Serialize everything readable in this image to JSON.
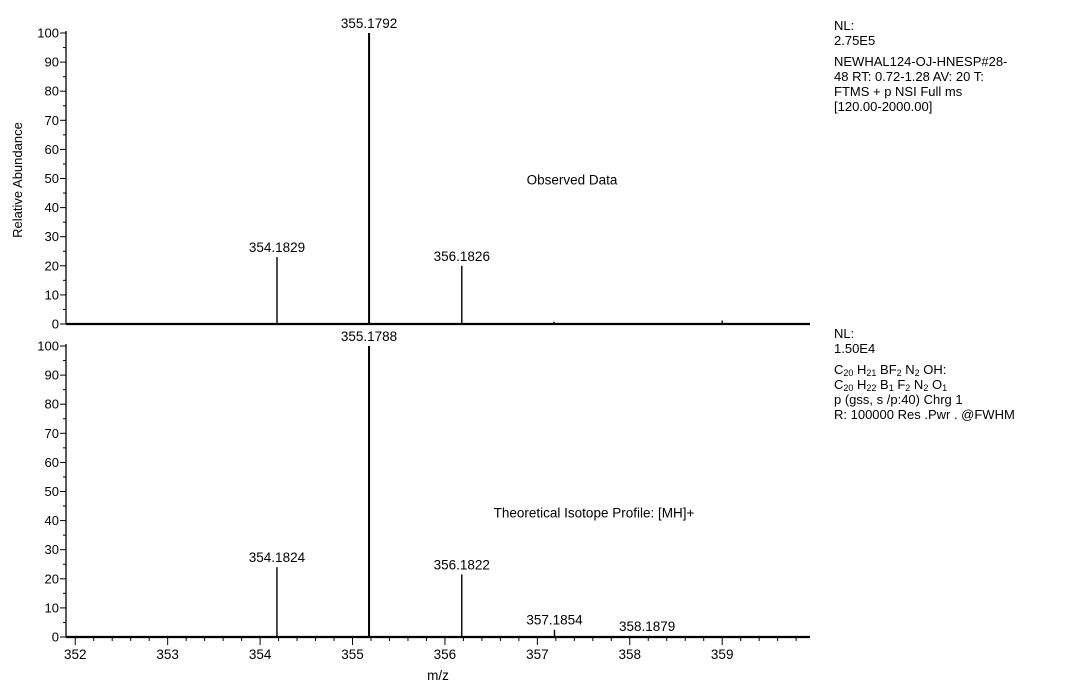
{
  "chart_data": [
    {
      "type": "bar",
      "panel": "observed",
      "title": "Observed Data",
      "ylabel": "Relative Abundance",
      "xlabel": "",
      "xlim": [
        351.9,
        359.95
      ],
      "ylim": [
        0,
        100
      ],
      "yticks": [
        0,
        10,
        20,
        30,
        40,
        50,
        60,
        70,
        80,
        90,
        100
      ],
      "peaks": [
        {
          "x": 354.1829,
          "y": 23,
          "label": "354.1829"
        },
        {
          "x": 355.1792,
          "y": 100,
          "label": "355.1792"
        },
        {
          "x": 356.1826,
          "y": 20,
          "label": "356.1826"
        },
        {
          "x": 357.18,
          "y": 0.8,
          "label": ""
        },
        {
          "x": 359.0,
          "y": 1.2,
          "label": ""
        }
      ],
      "info": {
        "nl_label": "NL:",
        "nl_value": "2.75E5",
        "lines": [
          "NEWHAL124-OJ-HNESP#28-",
          "48  RT: 0.72-1.28  AV: 20 T:",
          "FTMS + p NSI Full ms",
          "[120.00-2000.00]"
        ]
      }
    },
    {
      "type": "bar",
      "panel": "theoretical",
      "title": "Theoretical Isotope Profile: [MH]+",
      "ylabel": "Relative Abundance",
      "xlabel": "m/z",
      "xlim": [
        351.9,
        359.95
      ],
      "ylim": [
        0,
        100
      ],
      "yticks": [
        0,
        10,
        20,
        30,
        40,
        50,
        60,
        70,
        80,
        90,
        100
      ],
      "xticks": [
        352,
        353,
        354,
        355,
        356,
        357,
        358,
        359
      ],
      "peaks": [
        {
          "x": 354.1824,
          "y": 24,
          "label": "354.1824"
        },
        {
          "x": 355.1788,
          "y": 100,
          "label": "355.1788"
        },
        {
          "x": 356.1822,
          "y": 21.5,
          "label": "356.1822"
        },
        {
          "x": 357.1854,
          "y": 2.5,
          "label": "357.1854"
        },
        {
          "x": 358.1879,
          "y": 0.3,
          "label": "358.1879"
        }
      ],
      "info": {
        "nl_label": "NL:",
        "nl_value": "1.50E4",
        "formula1_parts": [
          "C",
          "20",
          " H",
          "21",
          " BF",
          "2",
          " N",
          "2",
          " OH:"
        ],
        "formula2_parts": [
          "C",
          "20",
          " H",
          "22",
          " B",
          "1",
          " F",
          "2",
          " N",
          "2",
          " O",
          "1"
        ],
        "lines": [
          "p (gss, s /p:40) Chrg 1",
          "R: 100000 Res .Pwr . @FWHM"
        ]
      }
    }
  ]
}
